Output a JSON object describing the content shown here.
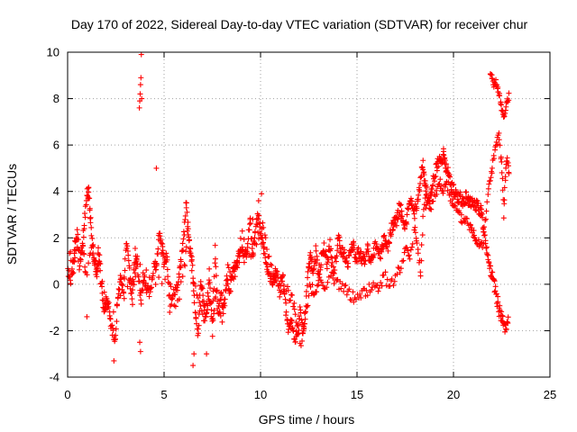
{
  "chart_data": {
    "type": "scatter",
    "title": "Day 170 of 2022, Sidereal Day-to-day VTEC variation (SDTVAR) for receiver chur",
    "xlabel": "GPS time / hours",
    "ylabel": "SDTVAR / TECUs",
    "xlim": [
      0,
      25
    ],
    "ylim": [
      -4,
      10
    ],
    "xticks": [
      0,
      5,
      10,
      15,
      20,
      25
    ],
    "yticks": [
      -4,
      -2,
      0,
      2,
      4,
      6,
      8,
      10
    ],
    "grid": true,
    "marker": "+",
    "color": "#ff0000",
    "series": [
      {
        "name": "SDTVAR",
        "trace": [
          [
            0.0,
            0.5
          ],
          [
            0.2,
            0.2
          ],
          [
            0.35,
            1.6
          ],
          [
            0.5,
            2.2
          ],
          [
            0.7,
            1.0
          ],
          [
            0.85,
            2.5
          ],
          [
            1.0,
            3.7
          ],
          [
            1.1,
            4.2
          ],
          [
            1.2,
            2.6
          ],
          [
            1.35,
            1.4
          ],
          [
            1.5,
            0.2
          ],
          [
            1.6,
            1.5
          ],
          [
            1.75,
            -0.2
          ],
          [
            1.9,
            -1.2
          ],
          [
            2.0,
            -0.8
          ],
          [
            2.15,
            -1.0
          ],
          [
            2.3,
            -2.0
          ],
          [
            2.45,
            -2.6
          ],
          [
            2.6,
            -0.4
          ],
          [
            2.75,
            0.2
          ],
          [
            2.9,
            -0.2
          ],
          [
            3.05,
            2.0
          ],
          [
            3.2,
            0.5
          ],
          [
            3.35,
            -0.6
          ],
          [
            3.5,
            1.3
          ],
          [
            3.65,
            0.5
          ],
          [
            3.8,
            -0.8
          ],
          [
            3.95,
            0.3
          ],
          [
            4.1,
            -0.2
          ],
          [
            4.3,
            -0.4
          ],
          [
            4.5,
            1.0
          ],
          [
            4.6,
            0.6
          ],
          [
            4.75,
            2.4
          ],
          [
            4.9,
            1.5
          ],
          [
            5.0,
            0.8
          ],
          [
            5.15,
            1.2
          ],
          [
            5.3,
            -1.0
          ],
          [
            5.5,
            -0.4
          ],
          [
            5.7,
            0.0
          ],
          [
            5.85,
            0.8
          ],
          [
            6.0,
            1.8
          ],
          [
            6.15,
            3.5
          ],
          [
            6.3,
            1.7
          ],
          [
            6.45,
            1.0
          ],
          [
            6.6,
            -1.0
          ],
          [
            6.75,
            -2.2
          ],
          [
            6.9,
            0.2
          ],
          [
            7.05,
            -0.8
          ],
          [
            7.2,
            -1.4
          ],
          [
            7.35,
            0.6
          ],
          [
            7.5,
            -2.0
          ],
          [
            7.65,
            1.6
          ],
          [
            7.8,
            -1.5
          ],
          [
            7.95,
            -0.5
          ],
          [
            8.1,
            -1.0
          ],
          [
            8.25,
            0.2
          ],
          [
            8.4,
            -0.3
          ],
          [
            8.55,
            0.5
          ],
          [
            8.7,
            0.8
          ],
          [
            8.85,
            1.0
          ],
          [
            9.0,
            1.5
          ],
          [
            9.15,
            1.2
          ],
          [
            9.3,
            1.5
          ],
          [
            9.45,
            2.8
          ],
          [
            9.6,
            1.4
          ],
          [
            9.75,
            2.4
          ],
          [
            9.9,
            3.1
          ],
          [
            10.05,
            2.0
          ],
          [
            10.2,
            1.5
          ],
          [
            10.35,
            0.8
          ],
          [
            10.5,
            0.4
          ],
          [
            10.65,
            0.0
          ],
          [
            10.8,
            0.8
          ],
          [
            11.0,
            -0.5
          ],
          [
            11.15,
            0.3
          ],
          [
            11.3,
            -1.0
          ],
          [
            11.45,
            -2.0
          ],
          [
            11.6,
            -1.5
          ],
          [
            11.75,
            -2.4
          ],
          [
            11.9,
            -2.0
          ],
          [
            12.05,
            -1.2
          ],
          [
            12.2,
            -2.2
          ],
          [
            12.35,
            -1.0
          ],
          [
            12.5,
            0.8
          ],
          [
            12.6,
            1.2
          ],
          [
            12.7,
            0.2
          ],
          [
            12.85,
            1.4
          ],
          [
            13.0,
            0.4
          ],
          [
            13.15,
            1.2
          ],
          [
            13.3,
            1.6
          ],
          [
            13.45,
            0.9
          ],
          [
            13.6,
            1.8
          ],
          [
            13.75,
            0.5
          ],
          [
            13.9,
            1.0
          ],
          [
            14.05,
            2.1
          ],
          [
            14.2,
            1.3
          ],
          [
            14.35,
            1.4
          ],
          [
            14.5,
            0.8
          ],
          [
            14.65,
            1.5
          ],
          [
            14.8,
            1.8
          ],
          [
            14.95,
            1.0
          ],
          [
            15.1,
            1.4
          ],
          [
            15.25,
            1.1
          ],
          [
            15.4,
            1.0
          ],
          [
            15.55,
            1.5
          ],
          [
            15.7,
            0.8
          ],
          [
            15.85,
            1.4
          ],
          [
            16.0,
            1.8
          ],
          [
            16.15,
            1.2
          ],
          [
            16.3,
            1.6
          ],
          [
            16.45,
            2.0
          ],
          [
            16.6,
            1.5
          ],
          [
            16.75,
            2.3
          ],
          [
            16.9,
            2.6
          ],
          [
            17.05,
            2.8
          ],
          [
            17.2,
            3.4
          ],
          [
            17.35,
            3.0
          ],
          [
            17.5,
            2.4
          ],
          [
            17.65,
            3.2
          ],
          [
            17.8,
            3.6
          ],
          [
            17.95,
            3.0
          ],
          [
            18.1,
            3.4
          ],
          [
            18.25,
            4.0
          ],
          [
            18.4,
            5.2
          ],
          [
            18.5,
            4.5
          ],
          [
            18.6,
            4.0
          ],
          [
            18.75,
            3.5
          ],
          [
            18.9,
            4.2
          ],
          [
            19.05,
            4.8
          ],
          [
            19.2,
            5.2
          ],
          [
            19.35,
            5.4
          ],
          [
            19.5,
            5.6
          ],
          [
            19.6,
            5.0
          ],
          [
            19.75,
            4.7
          ],
          [
            19.9,
            4.3
          ],
          [
            20.05,
            4.0
          ],
          [
            20.2,
            3.8
          ],
          [
            20.35,
            3.7
          ],
          [
            20.5,
            3.6
          ],
          [
            20.65,
            3.8
          ],
          [
            20.8,
            3.5
          ],
          [
            20.95,
            3.6
          ],
          [
            21.1,
            3.4
          ],
          [
            21.25,
            3.4
          ],
          [
            21.4,
            3.2
          ],
          [
            21.5,
            2.8
          ],
          [
            21.65,
            2.0
          ],
          [
            21.8,
            1.2
          ],
          [
            21.95,
            0.5
          ],
          [
            22.1,
            0.0
          ],
          [
            22.25,
            -0.6
          ],
          [
            22.4,
            -1.2
          ],
          [
            22.55,
            -1.6
          ],
          [
            22.7,
            -2.0
          ],
          [
            22.85,
            -1.6
          ]
        ],
        "trace2": [
          [
            0.1,
            1.5
          ],
          [
            0.3,
            0.4
          ],
          [
            0.45,
            2.0
          ],
          [
            0.6,
            0.8
          ],
          [
            0.8,
            1.8
          ],
          [
            0.95,
            0.4
          ],
          [
            1.25,
            1.6
          ],
          [
            1.45,
            0.8
          ],
          [
            1.7,
            0.8
          ],
          [
            2.2,
            -1.6
          ],
          [
            3.1,
            -0.1
          ],
          [
            3.45,
            0.2
          ],
          [
            3.6,
            1.1
          ],
          [
            4.4,
            0.2
          ],
          [
            5.2,
            0.3
          ],
          [
            5.6,
            -1.2
          ],
          [
            6.05,
            0.6
          ],
          [
            6.25,
            2.5
          ],
          [
            6.5,
            0.2
          ],
          [
            6.85,
            -1.0
          ],
          [
            7.1,
            -1.6
          ],
          [
            7.3,
            -0.5
          ],
          [
            7.55,
            -1.8
          ],
          [
            7.7,
            -0.2
          ],
          [
            8.0,
            -1.6
          ],
          [
            8.3,
            0.6
          ],
          [
            8.6,
            0.0
          ],
          [
            9.05,
            2.2
          ],
          [
            9.5,
            1.0
          ],
          [
            9.85,
            2.0
          ],
          [
            10.1,
            2.6
          ],
          [
            10.4,
            1.3
          ],
          [
            10.7,
            0.3
          ],
          [
            11.05,
            0.1
          ],
          [
            11.4,
            -0.3
          ],
          [
            11.65,
            -0.7
          ],
          [
            11.85,
            -1.4
          ],
          [
            12.1,
            -2.6
          ],
          [
            12.3,
            -1.6
          ],
          [
            12.55,
            -0.2
          ],
          [
            12.8,
            -0.4
          ],
          [
            13.05,
            0.2
          ],
          [
            13.35,
            0.0
          ],
          [
            13.7,
            0.4
          ],
          [
            14.0,
            0.0
          ],
          [
            14.3,
            -0.2
          ],
          [
            14.6,
            -0.4
          ],
          [
            14.9,
            -0.6
          ],
          [
            15.2,
            -0.4
          ],
          [
            15.5,
            -0.3
          ],
          [
            15.8,
            0.0
          ],
          [
            16.1,
            -0.2
          ],
          [
            16.4,
            0.4
          ],
          [
            16.7,
            -0.2
          ],
          [
            17.0,
            0.4
          ],
          [
            17.3,
            0.8
          ],
          [
            17.55,
            1.5
          ],
          [
            17.75,
            1.2
          ],
          [
            18.0,
            2.4
          ],
          [
            18.15,
            1.4
          ],
          [
            18.3,
            0.4
          ],
          [
            18.45,
            3.4
          ],
          [
            18.65,
            3.6
          ],
          [
            18.85,
            3.2
          ],
          [
            19.1,
            4.0
          ],
          [
            19.3,
            4.4
          ],
          [
            19.45,
            4.0
          ],
          [
            19.65,
            4.4
          ],
          [
            19.85,
            3.8
          ],
          [
            20.0,
            3.4
          ],
          [
            20.25,
            3.0
          ],
          [
            20.45,
            2.8
          ],
          [
            20.7,
            2.8
          ],
          [
            20.9,
            2.4
          ],
          [
            21.05,
            2.2
          ],
          [
            21.2,
            2.0
          ],
          [
            21.35,
            1.8
          ],
          [
            21.55,
            1.8
          ],
          [
            21.75,
            3.6
          ],
          [
            21.9,
            4.6
          ],
          [
            22.05,
            5.2
          ],
          [
            22.2,
            6.0
          ],
          [
            22.35,
            6.3
          ],
          [
            22.5,
            5.2
          ],
          [
            22.6,
            3.0
          ],
          [
            22.7,
            4.8
          ],
          [
            22.8,
            5.4
          ],
          [
            22.9,
            4.5
          ]
        ],
        "trace3": [
          [
            21.9,
            9.1
          ],
          [
            22.0,
            8.9
          ],
          [
            22.1,
            8.6
          ],
          [
            22.2,
            8.7
          ],
          [
            22.3,
            8.4
          ],
          [
            22.4,
            8.0
          ],
          [
            22.5,
            7.6
          ],
          [
            22.6,
            7.2
          ],
          [
            22.7,
            7.5
          ],
          [
            22.8,
            7.9
          ],
          [
            22.9,
            8.2
          ]
        ],
        "outliers": [
          [
            3.82,
            9.9
          ],
          [
            3.8,
            8.9
          ],
          [
            3.78,
            8.6
          ],
          [
            3.76,
            8.2
          ],
          [
            3.74,
            7.9
          ],
          [
            3.72,
            7.6
          ],
          [
            3.84,
            8.0
          ],
          [
            3.78,
            -2.9
          ],
          [
            3.74,
            -2.5
          ],
          [
            2.4,
            -3.3
          ],
          [
            6.5,
            -3.5
          ],
          [
            6.55,
            -3.0
          ],
          [
            7.2,
            -3.0
          ],
          [
            1.0,
            -1.4
          ],
          [
            4.6,
            5.0
          ],
          [
            9.9,
            3.6
          ],
          [
            10.05,
            3.9
          ],
          [
            9.6,
            2.8
          ]
        ]
      }
    ]
  }
}
